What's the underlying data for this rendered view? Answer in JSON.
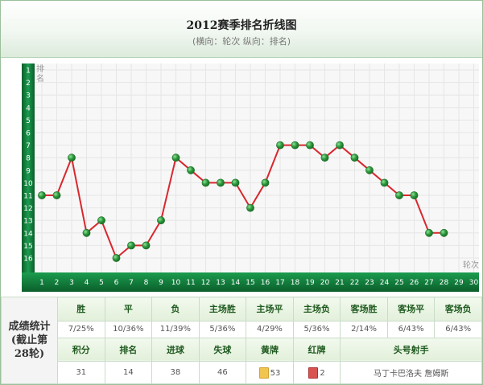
{
  "chart_data": {
    "type": "line",
    "title": "2012赛季排名折线图",
    "subtitle": "(横向：轮次 纵向：排名)",
    "ylabel": "排名",
    "xlabel": "轮次",
    "x": [
      1,
      2,
      3,
      4,
      5,
      6,
      7,
      8,
      9,
      10,
      11,
      12,
      13,
      14,
      15,
      16,
      17,
      18,
      19,
      20,
      21,
      22,
      23,
      24,
      25,
      26,
      27,
      28
    ],
    "values": [
      11,
      11,
      8,
      14,
      13,
      16,
      15,
      15,
      13,
      8,
      9,
      10,
      10,
      10,
      12,
      10,
      7,
      7,
      7,
      8,
      7,
      8,
      9,
      10,
      11,
      11,
      14,
      14
    ],
    "x_ticks": [
      "1",
      "2",
      "3",
      "4",
      "5",
      "6",
      "7",
      "8",
      "9",
      "10",
      "11",
      "12",
      "13",
      "14",
      "15",
      "16",
      "17",
      "18",
      "19",
      "20",
      "21",
      "22",
      "23",
      "24",
      "25",
      "26",
      "27",
      "28",
      "29",
      "30"
    ],
    "y_ticks": [
      "1",
      "2",
      "3",
      "4",
      "5",
      "6",
      "7",
      "8",
      "9",
      "10",
      "11",
      "12",
      "13",
      "14",
      "15",
      "16"
    ],
    "xlim": [
      1,
      30
    ],
    "ylim": [
      1,
      16
    ],
    "y_inverted": true,
    "grid": true,
    "colors": {
      "line": "#d9272e",
      "marker": "#2f9a3e",
      "axis": "#0f7a3a",
      "grid": "#e6e6e6"
    }
  },
  "stats": {
    "row_label": "成绩统计\n(截止第28轮)",
    "headers1": [
      "胜",
      "平",
      "负",
      "主场胜",
      "主场平",
      "主场负",
      "客场胜",
      "客场平",
      "客场负"
    ],
    "values1": [
      "7/25%",
      "10/36%",
      "11/39%",
      "5/36%",
      "4/29%",
      "5/36%",
      "2/14%",
      "6/43%",
      "6/43%"
    ],
    "headers2": [
      "积分",
      "排名",
      "进球",
      "失球",
      "黄牌",
      "红牌",
      "头号射手"
    ],
    "values2": {
      "points": "31",
      "rank": "14",
      "goals_for": "38",
      "goals_against": "46",
      "yellow": "53",
      "red": "2",
      "top_scorer": "马丁卡巴洛夫 詹姆斯"
    }
  }
}
